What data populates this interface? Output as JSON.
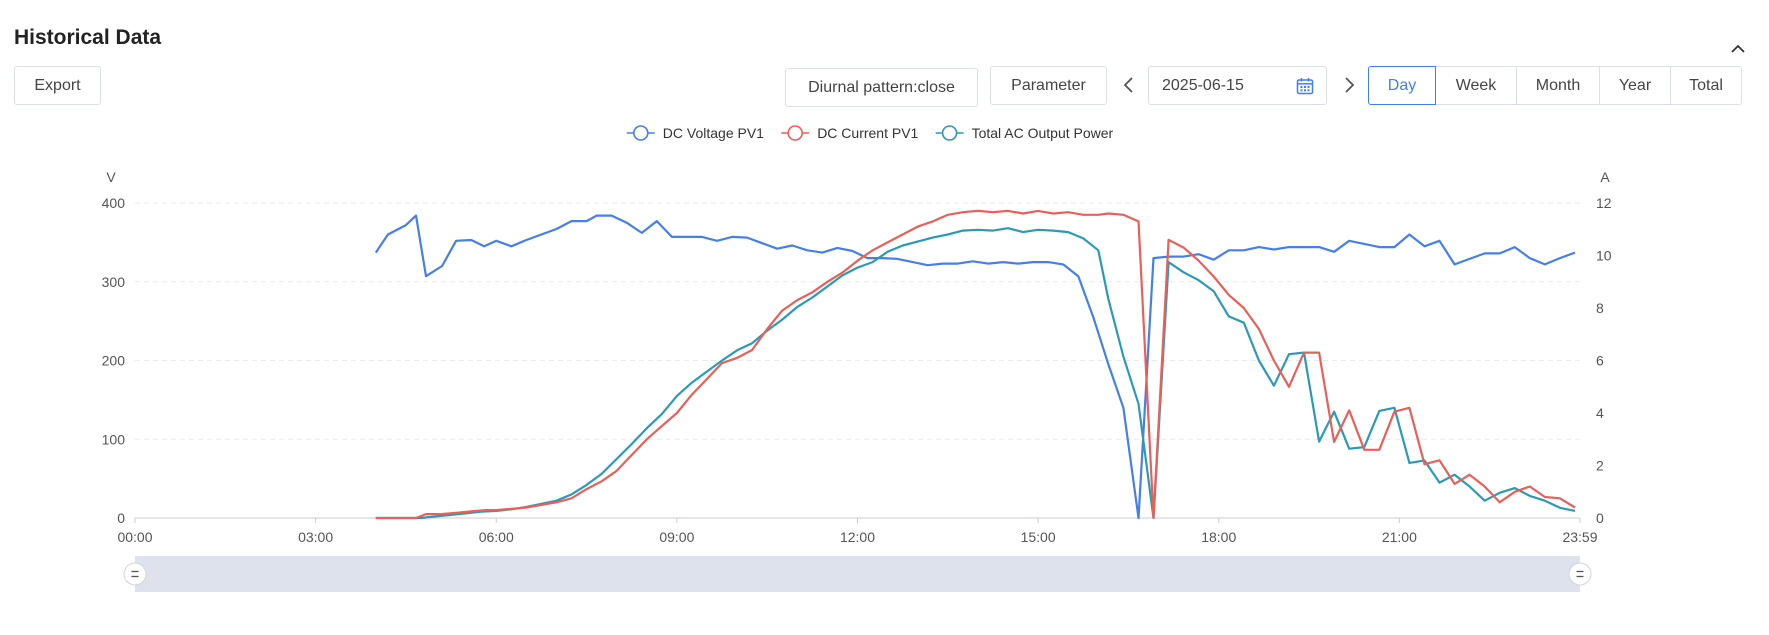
{
  "header": {
    "title": "Historical Data"
  },
  "toolbar": {
    "export_label": "Export",
    "diurnal_label": "Diurnal pattern:close",
    "parameter_label": "Parameter",
    "date_value": "2025-06-15",
    "periods": [
      "Day",
      "Week",
      "Month",
      "Year",
      "Total"
    ],
    "active_period": "Day"
  },
  "colors": {
    "accent": "#3f7ff0",
    "voltage": "#4680e6",
    "current": "#e8605a",
    "power": "#2c9ab5"
  },
  "chart_data": {
    "type": "line",
    "legend_position": "top-center",
    "grid": true,
    "x_ticks": [
      "00:00",
      "03:00",
      "06:00",
      "09:00",
      "12:00",
      "15:00",
      "18:00",
      "21:00",
      "23:59"
    ],
    "xlim_hours": [
      0,
      24
    ],
    "left_axis": {
      "unit": "V",
      "ylim": [
        0,
        400
      ],
      "ticks": [
        "0",
        "100",
        "200",
        "300",
        "400"
      ]
    },
    "right_axis": {
      "unit": "A",
      "ylim": [
        0,
        12
      ],
      "ticks": [
        "0",
        "2",
        "4",
        "6",
        "8",
        "10",
        "12"
      ]
    },
    "series": [
      {
        "name": "DC Voltage PV1",
        "axis": "left",
        "points": [
          [
            "04:00",
            337
          ],
          [
            "04:12",
            360
          ],
          [
            "04:30",
            372
          ],
          [
            "04:40",
            384
          ],
          [
            "04:50",
            307
          ],
          [
            "05:06",
            320
          ],
          [
            "05:20",
            352
          ],
          [
            "05:35",
            353
          ],
          [
            "05:48",
            345
          ],
          [
            "06:00",
            352
          ],
          [
            "06:15",
            345
          ],
          [
            "06:30",
            353
          ],
          [
            "06:45",
            360
          ],
          [
            "07:00",
            367
          ],
          [
            "07:15",
            377
          ],
          [
            "07:30",
            377
          ],
          [
            "07:40",
            384
          ],
          [
            "07:55",
            384
          ],
          [
            "08:10",
            375
          ],
          [
            "08:25",
            362
          ],
          [
            "08:40",
            377
          ],
          [
            "08:55",
            357
          ],
          [
            "09:10",
            357
          ],
          [
            "09:25",
            357
          ],
          [
            "09:40",
            352
          ],
          [
            "09:55",
            357
          ],
          [
            "10:10",
            356
          ],
          [
            "10:25",
            349
          ],
          [
            "10:40",
            342
          ],
          [
            "10:55",
            346
          ],
          [
            "11:10",
            340
          ],
          [
            "11:25",
            337
          ],
          [
            "11:40",
            343
          ],
          [
            "11:55",
            339
          ],
          [
            "12:10",
            330
          ],
          [
            "12:25",
            330
          ],
          [
            "12:40",
            329
          ],
          [
            "12:55",
            325
          ],
          [
            "13:10",
            321
          ],
          [
            "13:25",
            323
          ],
          [
            "13:40",
            323
          ],
          [
            "13:55",
            326
          ],
          [
            "14:10",
            323
          ],
          [
            "14:25",
            325
          ],
          [
            "14:40",
            323
          ],
          [
            "14:55",
            325
          ],
          [
            "15:10",
            325
          ],
          [
            "15:25",
            322
          ],
          [
            "15:40",
            307
          ],
          [
            "15:55",
            255
          ],
          [
            "16:10",
            195
          ],
          [
            "16:25",
            140
          ],
          [
            "16:40",
            0
          ],
          [
            "16:55",
            330
          ],
          [
            "17:10",
            332
          ],
          [
            "17:25",
            332
          ],
          [
            "17:40",
            335
          ],
          [
            "17:55",
            328
          ],
          [
            "18:10",
            340
          ],
          [
            "18:25",
            340
          ],
          [
            "18:40",
            344
          ],
          [
            "18:55",
            341
          ],
          [
            "19:10",
            344
          ],
          [
            "19:25",
            344
          ],
          [
            "19:40",
            344
          ],
          [
            "19:55",
            338
          ],
          [
            "20:10",
            352
          ],
          [
            "20:25",
            348
          ],
          [
            "20:40",
            344
          ],
          [
            "20:55",
            344
          ],
          [
            "21:10",
            360
          ],
          [
            "21:25",
            345
          ],
          [
            "21:40",
            352
          ],
          [
            "21:55",
            322
          ],
          [
            "22:10",
            329
          ],
          [
            "22:25",
            336
          ],
          [
            "22:40",
            336
          ],
          [
            "22:55",
            344
          ],
          [
            "23:10",
            330
          ],
          [
            "23:25",
            322
          ],
          [
            "23:40",
            330
          ],
          [
            "23:55",
            337
          ]
        ]
      },
      {
        "name": "DC Current PV1",
        "axis": "right",
        "points": [
          [
            "04:00",
            0
          ],
          [
            "04:15",
            0
          ],
          [
            "04:30",
            0
          ],
          [
            "04:40",
            0
          ],
          [
            "04:50",
            0.15
          ],
          [
            "05:05",
            0.15
          ],
          [
            "05:20",
            0.2
          ],
          [
            "05:35",
            0.25
          ],
          [
            "05:50",
            0.3
          ],
          [
            "06:00",
            0.3
          ],
          [
            "06:15",
            0.35
          ],
          [
            "06:30",
            0.4
          ],
          [
            "06:45",
            0.5
          ],
          [
            "07:00",
            0.6
          ],
          [
            "07:15",
            0.75
          ],
          [
            "07:30",
            1.1
          ],
          [
            "07:45",
            1.4
          ],
          [
            "08:00",
            1.8
          ],
          [
            "08:15",
            2.4
          ],
          [
            "08:30",
            3.0
          ],
          [
            "08:45",
            3.5
          ],
          [
            "09:00",
            4.0
          ],
          [
            "09:15",
            4.7
          ],
          [
            "09:30",
            5.3
          ],
          [
            "09:45",
            5.9
          ],
          [
            "10:00",
            6.1
          ],
          [
            "10:15",
            6.4
          ],
          [
            "10:30",
            7.2
          ],
          [
            "10:45",
            7.9
          ],
          [
            "11:00",
            8.3
          ],
          [
            "11:15",
            8.6
          ],
          [
            "11:30",
            9.0
          ],
          [
            "11:45",
            9.35
          ],
          [
            "12:00",
            9.8
          ],
          [
            "12:15",
            10.2
          ],
          [
            "12:30",
            10.5
          ],
          [
            "12:45",
            10.8
          ],
          [
            "13:00",
            11.1
          ],
          [
            "13:15",
            11.3
          ],
          [
            "13:30",
            11.55
          ],
          [
            "13:45",
            11.65
          ],
          [
            "14:00",
            11.7
          ],
          [
            "14:15",
            11.65
          ],
          [
            "14:30",
            11.7
          ],
          [
            "14:45",
            11.6
          ],
          [
            "15:00",
            11.7
          ],
          [
            "15:15",
            11.6
          ],
          [
            "15:30",
            11.65
          ],
          [
            "15:45",
            11.55
          ],
          [
            "16:00",
            11.55
          ],
          [
            "16:10",
            11.6
          ],
          [
            "16:25",
            11.55
          ],
          [
            "16:40",
            11.3
          ],
          [
            "16:55",
            0
          ],
          [
            "17:10",
            10.6
          ],
          [
            "17:25",
            10.3
          ],
          [
            "17:40",
            9.8
          ],
          [
            "17:55",
            9.2
          ],
          [
            "18:10",
            8.5
          ],
          [
            "18:25",
            8.0
          ],
          [
            "18:40",
            7.2
          ],
          [
            "18:55",
            6.0
          ],
          [
            "19:10",
            5.0
          ],
          [
            "19:25",
            6.3
          ],
          [
            "19:40",
            6.3
          ],
          [
            "19:55",
            2.9
          ],
          [
            "20:10",
            4.1
          ],
          [
            "20:25",
            2.6
          ],
          [
            "20:40",
            2.6
          ],
          [
            "20:55",
            4.05
          ],
          [
            "21:10",
            4.2
          ],
          [
            "21:25",
            2.05
          ],
          [
            "21:40",
            2.2
          ],
          [
            "21:55",
            1.3
          ],
          [
            "22:10",
            1.65
          ],
          [
            "22:25",
            1.2
          ],
          [
            "22:40",
            0.6
          ],
          [
            "22:55",
            1.0
          ],
          [
            "23:10",
            1.2
          ],
          [
            "23:25",
            0.8
          ],
          [
            "23:40",
            0.75
          ],
          [
            "23:55",
            0.4
          ]
        ]
      },
      {
        "name": "Total AC Output Power",
        "axis": "left",
        "points": [
          [
            "04:00",
            0
          ],
          [
            "04:30",
            0
          ],
          [
            "04:45",
            0
          ],
          [
            "05:00",
            2
          ],
          [
            "05:15",
            4
          ],
          [
            "05:30",
            6
          ],
          [
            "05:45",
            8
          ],
          [
            "06:00",
            9
          ],
          [
            "06:15",
            11
          ],
          [
            "06:30",
            14
          ],
          [
            "06:45",
            18
          ],
          [
            "07:00",
            22
          ],
          [
            "07:15",
            30
          ],
          [
            "07:30",
            42
          ],
          [
            "07:45",
            56
          ],
          [
            "08:00",
            75
          ],
          [
            "08:15",
            94
          ],
          [
            "08:30",
            114
          ],
          [
            "08:45",
            132
          ],
          [
            "09:00",
            155
          ],
          [
            "09:15",
            172
          ],
          [
            "09:30",
            186
          ],
          [
            "09:45",
            200
          ],
          [
            "10:00",
            213
          ],
          [
            "10:15",
            222
          ],
          [
            "10:30",
            238
          ],
          [
            "10:45",
            252
          ],
          [
            "11:00",
            268
          ],
          [
            "11:15",
            280
          ],
          [
            "11:30",
            294
          ],
          [
            "11:45",
            308
          ],
          [
            "12:00",
            318
          ],
          [
            "12:15",
            325
          ],
          [
            "12:30",
            338
          ],
          [
            "12:45",
            346
          ],
          [
            "13:00",
            351
          ],
          [
            "13:15",
            356
          ],
          [
            "13:30",
            360
          ],
          [
            "13:45",
            365
          ],
          [
            "14:00",
            366
          ],
          [
            "14:15",
            365
          ],
          [
            "14:30",
            368
          ],
          [
            "14:45",
            363
          ],
          [
            "15:00",
            366
          ],
          [
            "15:15",
            365
          ],
          [
            "15:30",
            363
          ],
          [
            "15:45",
            355
          ],
          [
            "16:00",
            340
          ],
          [
            "16:10",
            278
          ],
          [
            "16:25",
            205
          ],
          [
            "16:40",
            145
          ],
          [
            "16:55",
            0
          ],
          [
            "17:10",
            325
          ],
          [
            "17:25",
            312
          ],
          [
            "17:40",
            302
          ],
          [
            "17:55",
            288
          ],
          [
            "18:10",
            256
          ],
          [
            "18:25",
            248
          ],
          [
            "18:40",
            200
          ],
          [
            "18:55",
            168
          ],
          [
            "19:10",
            208
          ],
          [
            "19:25",
            210
          ],
          [
            "19:40",
            97
          ],
          [
            "19:55",
            135
          ],
          [
            "20:10",
            88
          ],
          [
            "20:25",
            90
          ],
          [
            "20:40",
            136
          ],
          [
            "20:55",
            140
          ],
          [
            "21:10",
            70
          ],
          [
            "21:25",
            73
          ],
          [
            "21:40",
            45
          ],
          [
            "21:55",
            55
          ],
          [
            "22:10",
            40
          ],
          [
            "22:25",
            22
          ],
          [
            "22:40",
            32
          ],
          [
            "22:55",
            38
          ],
          [
            "23:10",
            28
          ],
          [
            "23:25",
            22
          ],
          [
            "23:40",
            13
          ],
          [
            "23:55",
            9
          ]
        ]
      }
    ]
  }
}
